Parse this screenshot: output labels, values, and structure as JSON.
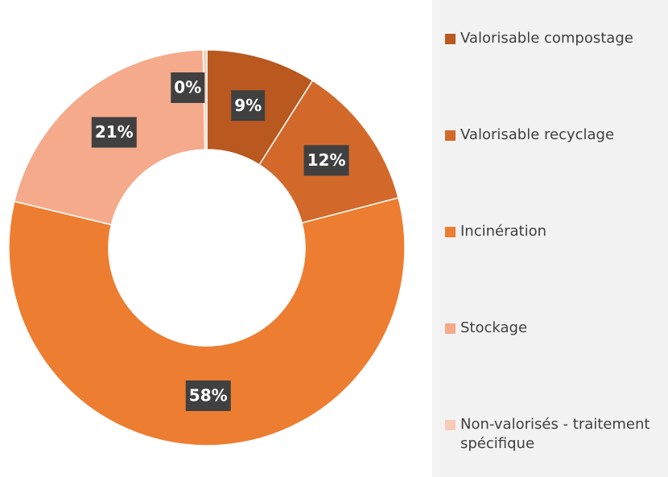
{
  "chart_data": {
    "type": "donut",
    "categories": [
      "Valorisable compostage",
      "Valorisable recyclage",
      "Incinération",
      "Stockage",
      "Non-valorisés - traitement spécifique"
    ],
    "values": [
      9,
      12,
      58,
      21,
      0.3
    ],
    "value_labels": [
      "9%",
      "12%",
      "58%",
      "21%",
      "0%"
    ],
    "colors": [
      "#b9581f",
      "#d2692b",
      "#ed7d31",
      "#f4aa8b",
      "#f8cbb9"
    ]
  }
}
